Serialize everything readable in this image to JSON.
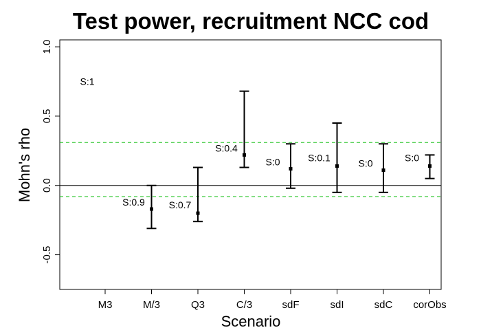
{
  "chart_data": {
    "type": "errorbar",
    "title": "Test power, recruitment NCC cod",
    "xlabel": "Scenario",
    "ylabel": "Mohn's rho",
    "ylim": [
      -0.75,
      1.05
    ],
    "yticks": [
      "-0.5",
      "0.0",
      "0.5",
      "1.0"
    ],
    "ytick_values": [
      -0.5,
      0,
      0.5,
      1
    ],
    "categories": [
      "M3",
      "M/3",
      "Q3",
      "C/3",
      "sdF",
      "sdI",
      "sdC",
      "corObs"
    ],
    "points": [
      {
        "category": "M3",
        "mid": null,
        "low": null,
        "high": null,
        "annotation": "S:1",
        "ann_y": 0.75
      },
      {
        "category": "M/3",
        "mid": -0.17,
        "low": -0.31,
        "high": 0.0,
        "annotation": "S:0.9",
        "ann_y": -0.12
      },
      {
        "category": "Q3",
        "mid": -0.2,
        "low": -0.26,
        "high": 0.13,
        "annotation": "S:0.7",
        "ann_y": -0.14
      },
      {
        "category": "C/3",
        "mid": 0.22,
        "low": 0.13,
        "high": 0.68,
        "annotation": "S:0.4",
        "ann_y": 0.27
      },
      {
        "category": "sdF",
        "mid": 0.12,
        "low": -0.02,
        "high": 0.3,
        "annotation": "S:0",
        "ann_y": 0.17
      },
      {
        "category": "sdI",
        "mid": 0.14,
        "low": -0.05,
        "high": 0.45,
        "annotation": "S:0.1",
        "ann_y": 0.2
      },
      {
        "category": "sdC",
        "mid": 0.11,
        "low": -0.05,
        "high": 0.3,
        "annotation": "S:0",
        "ann_y": 0.16
      },
      {
        "category": "corObs",
        "mid": 0.14,
        "low": 0.05,
        "high": 0.22,
        "annotation": "S:0",
        "ann_y": 0.2
      }
    ],
    "reference_lines": {
      "zero": {
        "y": 0,
        "color": "#000000",
        "style": "solid"
      },
      "upper": {
        "y": 0.31,
        "color": "#22c422",
        "style": "dashed"
      },
      "lower": {
        "y": -0.08,
        "color": "#22c422",
        "style": "dashed"
      }
    },
    "grid": false,
    "legend": "none"
  }
}
